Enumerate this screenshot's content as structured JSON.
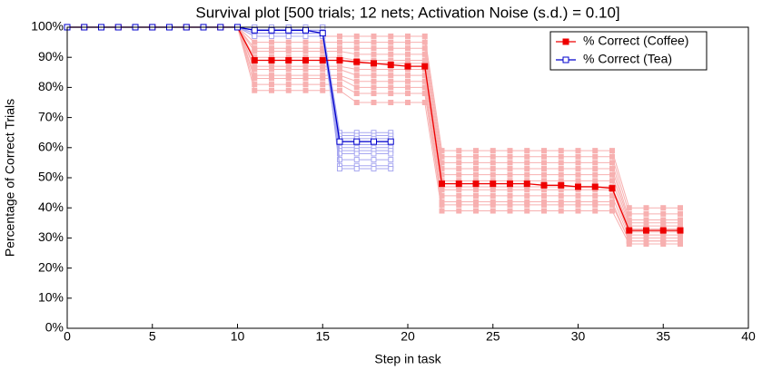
{
  "chart_data": {
    "type": "line",
    "title": "Survival plot [500 trials; 12 nets; Activation Noise (s.d.) = 0.10]",
    "x_label": "Step in task",
    "y_label": "Percentage of Correct Trials",
    "xlim": [
      0,
      40
    ],
    "xticks": [
      0,
      5,
      10,
      15,
      20,
      25,
      30,
      35,
      40
    ],
    "ylim": [
      0,
      100
    ],
    "yticks": [
      {
        "value": 0,
        "label": "0%"
      },
      {
        "value": 10,
        "label": "10%"
      },
      {
        "value": 20,
        "label": "20%"
      },
      {
        "value": 30,
        "label": "30%"
      },
      {
        "value": 40,
        "label": "40%"
      },
      {
        "value": 50,
        "label": "50%"
      },
      {
        "value": 60,
        "label": "60%"
      },
      {
        "value": 70,
        "label": "70%"
      },
      {
        "value": 80,
        "label": "80%"
      },
      {
        "value": 90,
        "label": "90%"
      },
      {
        "value": 100,
        "label": "100%"
      }
    ],
    "grid": false,
    "legend": "upper-right",
    "series": [
      {
        "name": "% Correct (Coffee)",
        "color": "#ee0000",
        "marker": "filled",
        "x": [
          0,
          1,
          2,
          3,
          4,
          5,
          6,
          7,
          8,
          9,
          10,
          11,
          12,
          13,
          14,
          15,
          16,
          17,
          18,
          19,
          20,
          21,
          22,
          23,
          24,
          25,
          26,
          27,
          28,
          29,
          30,
          31,
          32,
          33,
          34,
          35,
          36
        ],
        "values": [
          100,
          100,
          100,
          100,
          100,
          100,
          100,
          100,
          100,
          100,
          100,
          89,
          89,
          89,
          89,
          89,
          89,
          88.5,
          88,
          87.5,
          87,
          87,
          48,
          48,
          48,
          48,
          48,
          48,
          47.5,
          47.5,
          47,
          47,
          46.5,
          32.5,
          32.5,
          32.5,
          32.5
        ]
      },
      {
        "name": "% Correct (Tea)",
        "color": "#0000cc",
        "marker": "open",
        "x": [
          0,
          1,
          2,
          3,
          4,
          5,
          6,
          7,
          8,
          9,
          10,
          11,
          12,
          13,
          14,
          15,
          16,
          17,
          18,
          19
        ],
        "values": [
          100,
          100,
          100,
          100,
          100,
          100,
          100,
          100,
          100,
          100,
          100,
          99,
          99,
          99,
          99,
          98,
          62,
          62,
          62,
          62
        ]
      }
    ],
    "nets": [
      {
        "color": "#f7b0b0",
        "values": [
          [
            100,
            100,
            100,
            100,
            100,
            100,
            100,
            100,
            100,
            100,
            100,
            97,
            97,
            97,
            97,
            97,
            97,
            97,
            97,
            97,
            97,
            97,
            59,
            59,
            59,
            59,
            59,
            59,
            59,
            59,
            59,
            59,
            59,
            40,
            40,
            40,
            40
          ],
          [
            100,
            100,
            100,
            100,
            100,
            100,
            100,
            100,
            100,
            100,
            100,
            95,
            95,
            95,
            95,
            95,
            95,
            95,
            95,
            95,
            95,
            95,
            57,
            57,
            57,
            57,
            57,
            57,
            57,
            57,
            57,
            57,
            57,
            38,
            38,
            38,
            38
          ],
          [
            100,
            100,
            100,
            100,
            100,
            100,
            100,
            100,
            100,
            100,
            100,
            93,
            93,
            93,
            93,
            93,
            93,
            93,
            93,
            93,
            93,
            93,
            55,
            55,
            55,
            55,
            55,
            55,
            55,
            55,
            55,
            55,
            55,
            36,
            36,
            36,
            36
          ],
          [
            100,
            100,
            100,
            100,
            100,
            100,
            100,
            100,
            100,
            100,
            100,
            92,
            92,
            92,
            92,
            92,
            92,
            91,
            91,
            91,
            91,
            91,
            53,
            53,
            53,
            53,
            53,
            53,
            53,
            53,
            53,
            53,
            53,
            35,
            35,
            35,
            35
          ],
          [
            100,
            100,
            100,
            100,
            100,
            100,
            100,
            100,
            100,
            100,
            100,
            90,
            90,
            90,
            90,
            90,
            90,
            89,
            89,
            89,
            89,
            89,
            51,
            51,
            51,
            51,
            51,
            51,
            51,
            51,
            51,
            51,
            51,
            34,
            34,
            34,
            34
          ],
          [
            100,
            100,
            100,
            100,
            100,
            100,
            100,
            100,
            100,
            100,
            100,
            89,
            89,
            89,
            89,
            89,
            89,
            88,
            88,
            88,
            88,
            88,
            49,
            49,
            49,
            49,
            49,
            49,
            49,
            49,
            49,
            49,
            49,
            33,
            33,
            33,
            33
          ],
          [
            100,
            100,
            100,
            100,
            100,
            100,
            100,
            100,
            100,
            100,
            100,
            87,
            87,
            87,
            87,
            87,
            87,
            86,
            86,
            86,
            86,
            86,
            47,
            47,
            47,
            47,
            47,
            47,
            47,
            47,
            47,
            47,
            47,
            32,
            32,
            32,
            32
          ],
          [
            100,
            100,
            100,
            100,
            100,
            100,
            100,
            100,
            100,
            100,
            100,
            86,
            86,
            86,
            86,
            86,
            86,
            84,
            84,
            84,
            84,
            84,
            46,
            46,
            46,
            46,
            46,
            46,
            46,
            46,
            46,
            46,
            46,
            31,
            31,
            31,
            31
          ],
          [
            100,
            100,
            100,
            100,
            100,
            100,
            100,
            100,
            100,
            100,
            100,
            84,
            84,
            84,
            84,
            84,
            84,
            82,
            82,
            82,
            82,
            82,
            44,
            44,
            44,
            44,
            44,
            44,
            44,
            44,
            44,
            44,
            44,
            30,
            30,
            30,
            30
          ],
          [
            100,
            100,
            100,
            100,
            100,
            100,
            100,
            100,
            100,
            100,
            100,
            83,
            83,
            83,
            83,
            83,
            83,
            80,
            80,
            80,
            80,
            80,
            42,
            42,
            42,
            42,
            42,
            42,
            42,
            42,
            42,
            42,
            42,
            29,
            29,
            29,
            29
          ],
          [
            100,
            100,
            100,
            100,
            100,
            100,
            100,
            100,
            100,
            100,
            100,
            81,
            81,
            81,
            81,
            81,
            81,
            78,
            78,
            78,
            78,
            78,
            41,
            41,
            41,
            41,
            41,
            41,
            41,
            41,
            41,
            41,
            41,
            29,
            29,
            29,
            29
          ],
          [
            100,
            100,
            100,
            100,
            100,
            100,
            100,
            100,
            100,
            100,
            100,
            79,
            79,
            79,
            79,
            79,
            79,
            75,
            75,
            75,
            75,
            75,
            39,
            39,
            39,
            39,
            39,
            39,
            39,
            39,
            39,
            39,
            39,
            28,
            28,
            28,
            28
          ]
        ]
      },
      {
        "color": "#a8a8f0",
        "values": [
          [
            100,
            100,
            100,
            100,
            100,
            100,
            100,
            100,
            100,
            100,
            100,
            100,
            100,
            100,
            100,
            100,
            65,
            65,
            65,
            65
          ],
          [
            100,
            100,
            100,
            100,
            100,
            100,
            100,
            100,
            100,
            100,
            100,
            100,
            100,
            100,
            100,
            100,
            64,
            64,
            64,
            64
          ],
          [
            100,
            100,
            100,
            100,
            100,
            100,
            100,
            100,
            100,
            100,
            100,
            99,
            99,
            99,
            99,
            99,
            63,
            63,
            63,
            63
          ],
          [
            100,
            100,
            100,
            100,
            100,
            100,
            100,
            100,
            100,
            100,
            100,
            99,
            99,
            99,
            99,
            99,
            62,
            62,
            62,
            62
          ],
          [
            100,
            100,
            100,
            100,
            100,
            100,
            100,
            100,
            100,
            100,
            100,
            98,
            98,
            98,
            98,
            98,
            62,
            62,
            62,
            62
          ],
          [
            100,
            100,
            100,
            100,
            100,
            100,
            100,
            100,
            100,
            100,
            100,
            98,
            98,
            98,
            98,
            98,
            61,
            61,
            61,
            61
          ],
          [
            100,
            100,
            100,
            100,
            100,
            100,
            100,
            100,
            100,
            100,
            100,
            100,
            100,
            100,
            100,
            100,
            60,
            60,
            60,
            60
          ],
          [
            100,
            100,
            100,
            100,
            100,
            100,
            100,
            100,
            100,
            100,
            100,
            99,
            99,
            99,
            99,
            99,
            59,
            59,
            59,
            59
          ],
          [
            100,
            100,
            100,
            100,
            100,
            100,
            100,
            100,
            100,
            100,
            100,
            98,
            98,
            98,
            98,
            98,
            58,
            58,
            58,
            58
          ],
          [
            100,
            100,
            100,
            100,
            100,
            100,
            100,
            100,
            100,
            100,
            100,
            97,
            97,
            97,
            97,
            97,
            56,
            56,
            56,
            56
          ],
          [
            100,
            100,
            100,
            100,
            100,
            100,
            100,
            100,
            100,
            100,
            100,
            99,
            99,
            99,
            99,
            99,
            54,
            54,
            54,
            54
          ],
          [
            100,
            100,
            100,
            100,
            100,
            100,
            100,
            100,
            100,
            100,
            100,
            100,
            100,
            100,
            100,
            100,
            53,
            53,
            53,
            53
          ]
        ]
      }
    ]
  }
}
